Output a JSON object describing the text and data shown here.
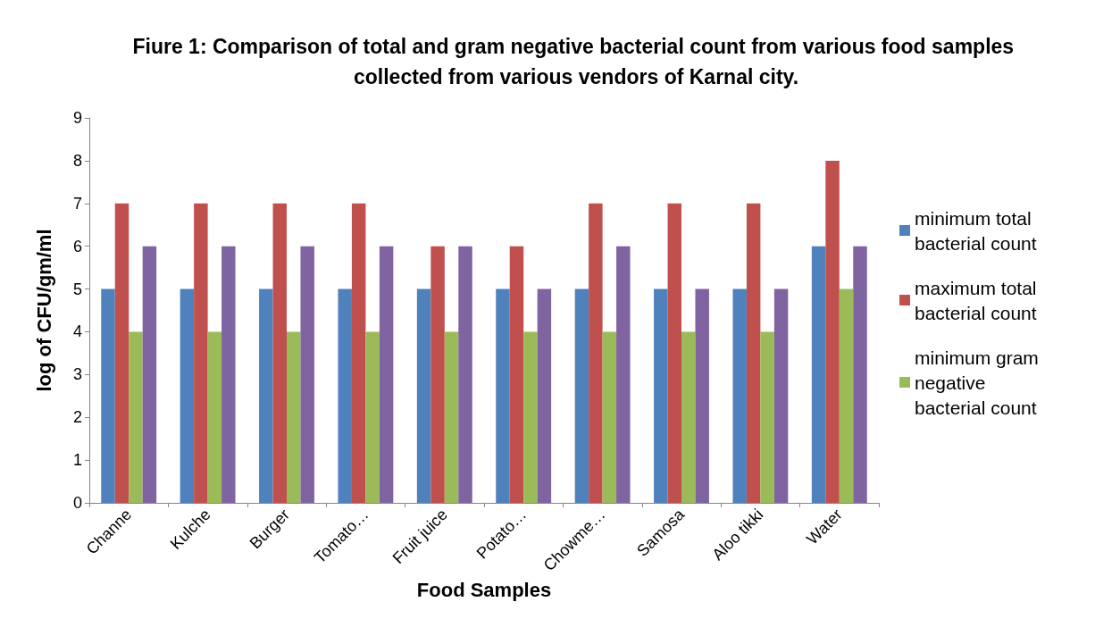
{
  "chart_data": {
    "type": "bar",
    "title": "Fiure 1: Comparison of total and gram negative bacterial count from various food samples collected from various vendors of Karnal city.",
    "xlabel": "Food Samples",
    "ylabel": "log of CFU/gm/ml",
    "categories": [
      "Channe",
      "Kulche",
      "Burger",
      "Tomato…",
      "Fruit juice",
      "Potato…",
      "Chowme…",
      "Samosa",
      "Aloo tikki",
      "Water"
    ],
    "series": [
      {
        "name": "minimum total bacterial count",
        "color": "#4f81bd",
        "values": [
          5,
          5,
          5,
          5,
          5,
          5,
          5,
          5,
          5,
          6
        ]
      },
      {
        "name": "maximum total bacterial count",
        "color": "#c0504d",
        "values": [
          7,
          7,
          7,
          7,
          6,
          6,
          7,
          7,
          7,
          8
        ]
      },
      {
        "name": "minimum gram negative bacterial count",
        "color": "#9bbb59",
        "values": [
          4,
          4,
          4,
          4,
          4,
          4,
          4,
          4,
          4,
          5
        ]
      },
      {
        "color": "#8064a2",
        "values": [
          6,
          6,
          6,
          6,
          6,
          5,
          6,
          5,
          5,
          6
        ]
      }
    ],
    "ylim": [
      0,
      9
    ],
    "yticks": [
      0,
      1,
      2,
      3,
      4,
      5,
      6,
      7,
      8,
      9
    ],
    "grid": false,
    "legend": "right"
  }
}
